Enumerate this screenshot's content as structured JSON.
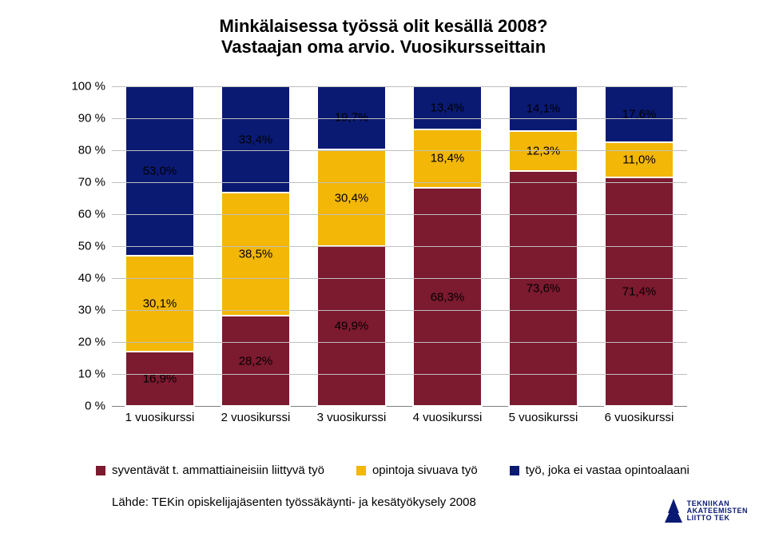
{
  "title": {
    "line1": "Minkälaisessa työssä olit kesällä 2008?",
    "line2": "Vastaajan oma arvio. Vuosikursseittain",
    "fontsize": 22,
    "color": "#000000",
    "weight": "700"
  },
  "chart": {
    "type": "stacked-bar",
    "ylim": [
      0,
      100
    ],
    "ytick_step": 10,
    "ytick_suffix": " %",
    "grid_color": "#bfbfbf",
    "background_color": "#ffffff",
    "axis_fontsize": 15,
    "value_label_fontsize": 15,
    "xaxis_fontsize": 15,
    "bar_width_ratio": 0.72,
    "colors": {
      "series1": "#7c1a2f",
      "series2": "#f2b707",
      "series3": "#0a1a73"
    },
    "categories": [
      "1 vuosikurssi",
      "2 vuosikurssi",
      "3 vuosikurssi",
      "4 vuosikurssi",
      "5 vuosikurssi",
      "6 vuosikurssi"
    ],
    "series": [
      {
        "name": "syventävät t. ammattiaineisiin liittyvä työ",
        "color_key": "series1",
        "values": [
          16.9,
          28.2,
          49.9,
          68.3,
          73.6,
          71.4
        ],
        "labels": [
          "16,9%",
          "28,2%",
          "49,9%",
          "68,3%",
          "73,6%",
          "71,4%"
        ]
      },
      {
        "name": "opintoja sivuava työ",
        "color_key": "series2",
        "values": [
          30.1,
          38.5,
          30.4,
          18.4,
          12.3,
          11.0
        ],
        "labels": [
          "30,1%",
          "38,5%",
          "30,4%",
          "18,4%",
          "12,3%",
          "11,0%"
        ]
      },
      {
        "name": "työ, joka ei vastaa opintoalaani",
        "color_key": "series3",
        "values": [
          53.0,
          33.4,
          19.7,
          13.4,
          14.1,
          17.6
        ],
        "labels": [
          "53,0%",
          "33,4%",
          "19,7%",
          "13,4%",
          "14,1%",
          "17,6%"
        ]
      }
    ]
  },
  "legend": {
    "fontsize": 15,
    "items": [
      {
        "label": "syventävät t. ammattiaineisiin liittyvä työ",
        "color_key": "series1"
      },
      {
        "label": "opintoja sivuava työ",
        "color_key": "series2"
      },
      {
        "label": "työ, joka ei vastaa opintoalaani",
        "color_key": "series3"
      }
    ]
  },
  "source": {
    "text": "Lähde: TEKin opiskelijajäsenten työssäkäynti- ja kesätyökysely 2008",
    "fontsize": 15,
    "color": "#000000"
  },
  "logo": {
    "lines": [
      "TEKNIIKAN",
      "AKATEEMISTEN",
      "LIITTO TEK"
    ],
    "fontsize": 9,
    "color": "#0a1a73",
    "mark_color": "#0a1a73"
  }
}
